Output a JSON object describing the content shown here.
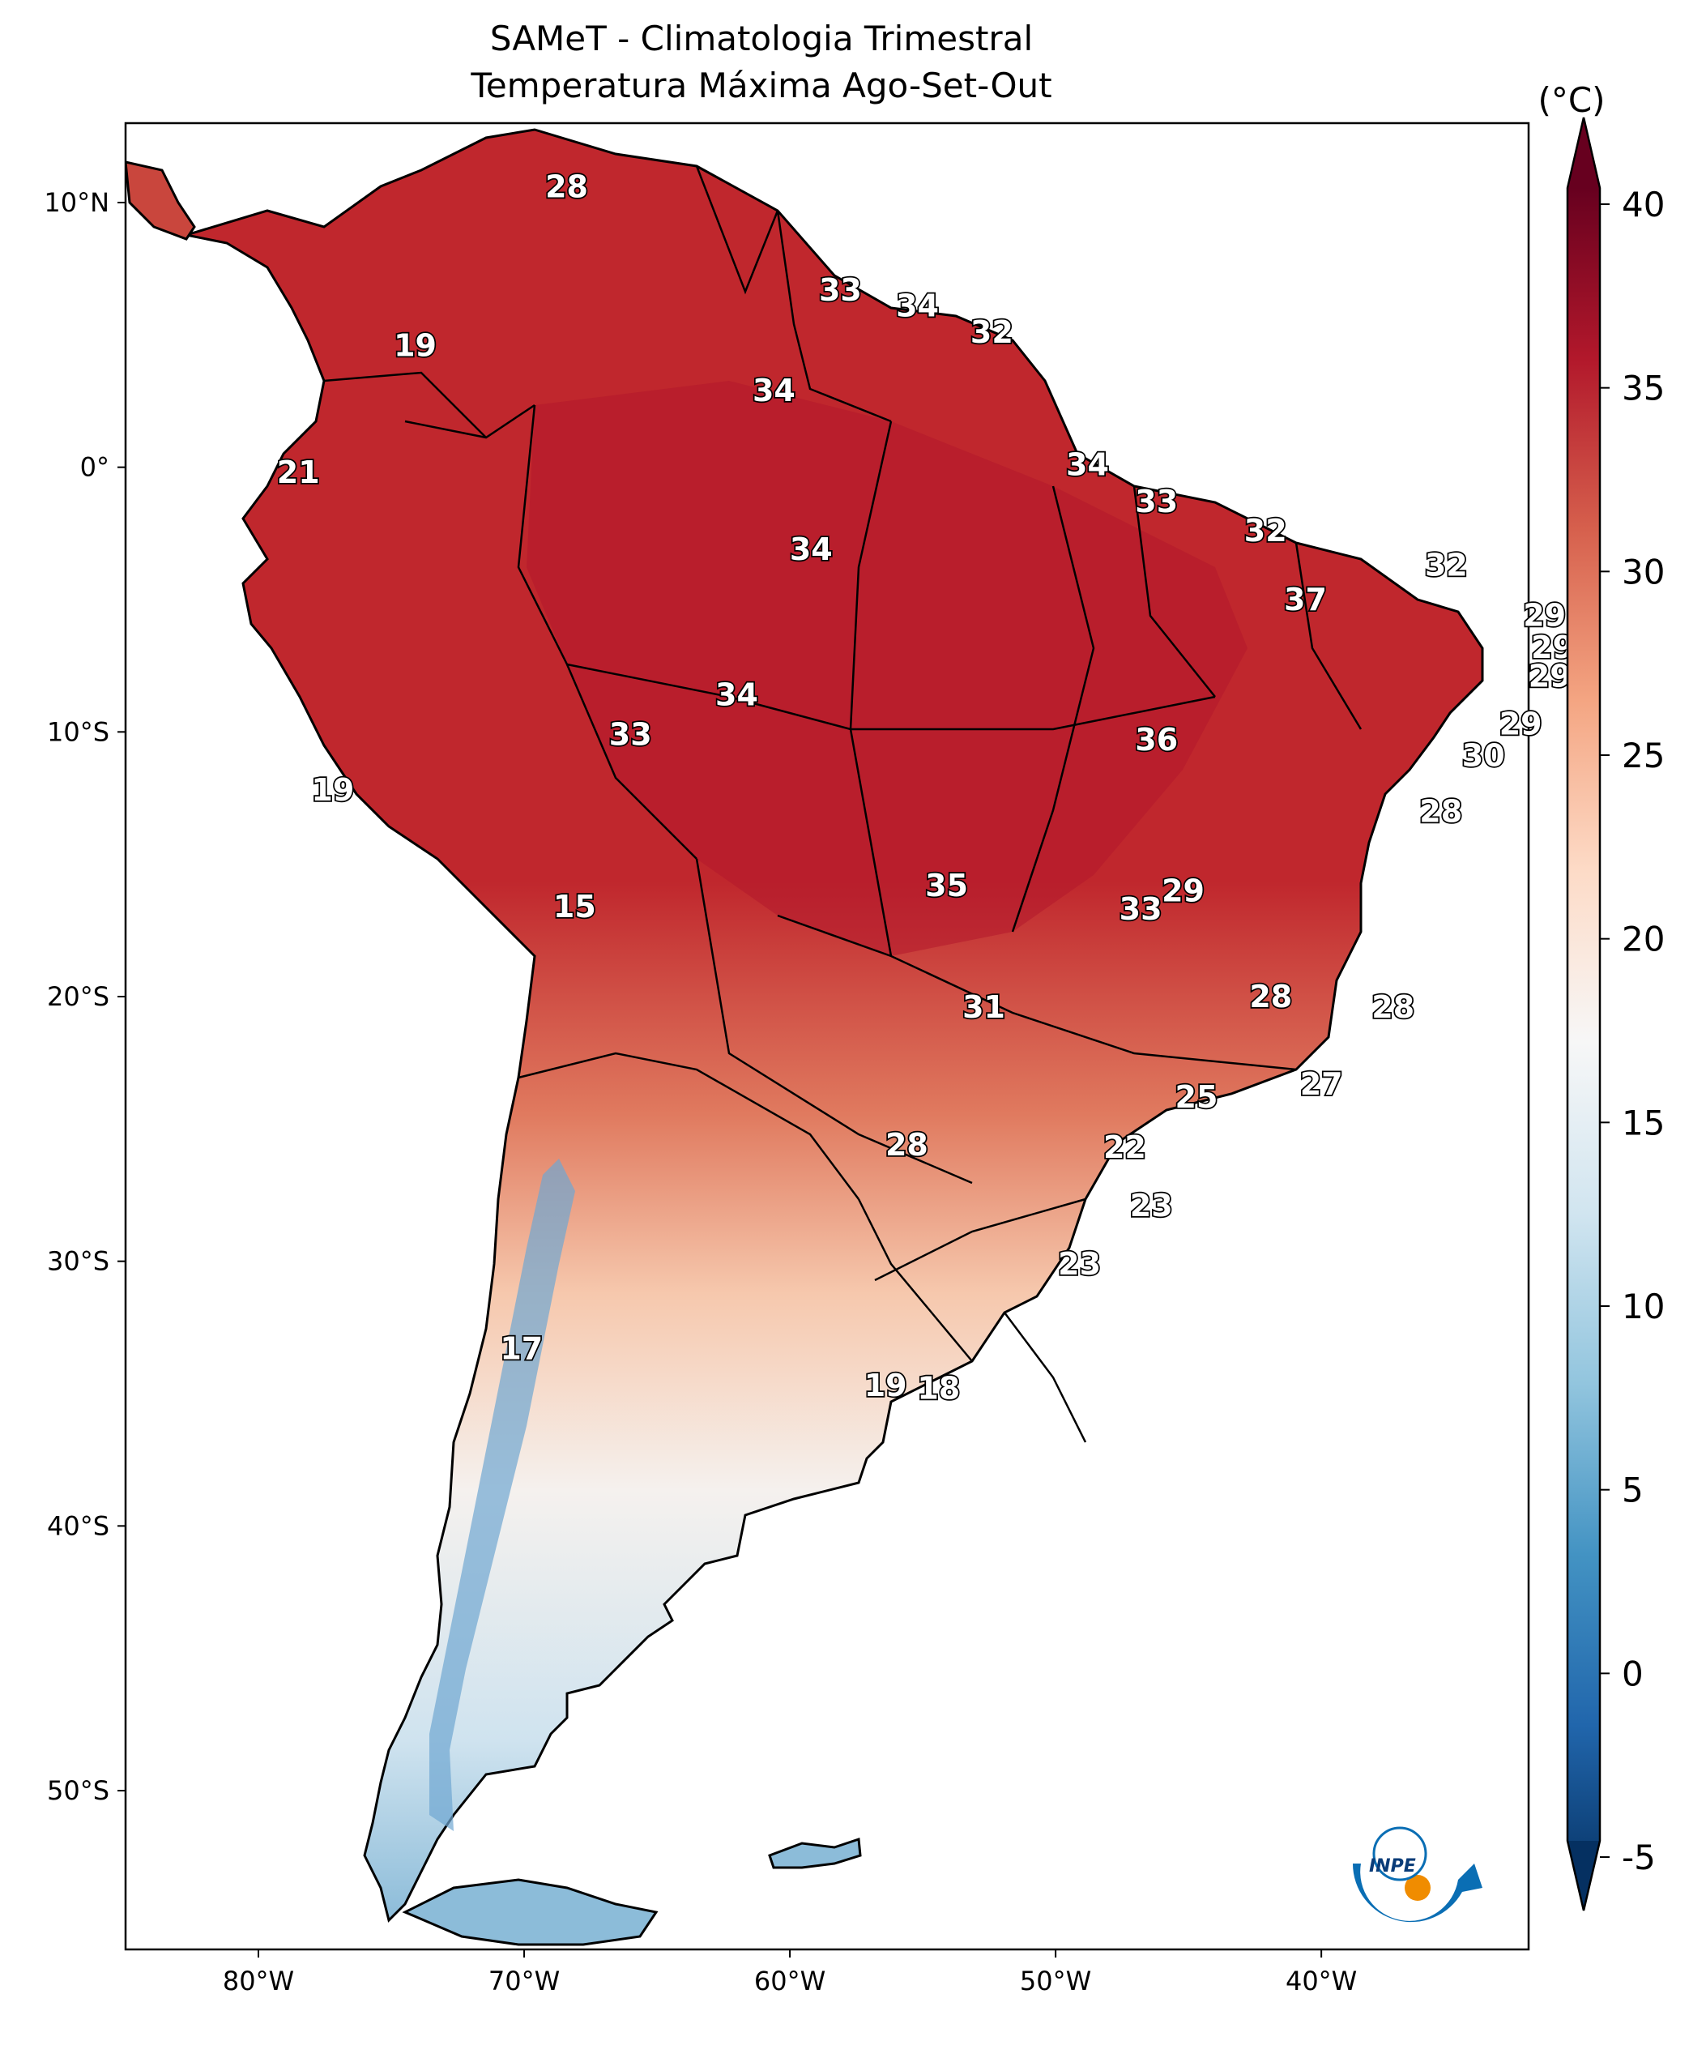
{
  "title": "SAMeT - Climatologia Trimestral",
  "subtitle": "Temperatura Máxima   Ago-Set-Out",
  "colorbar": {
    "unit": "(°C)",
    "ticks": [
      "40",
      "35",
      "30",
      "25",
      "20",
      "15",
      "10",
      "5",
      "0",
      "-5"
    ],
    "min": -5,
    "max": 40,
    "colormap": "RdBu_r",
    "colors": [
      "#053061",
      "#2166ac",
      "#4393c3",
      "#92c5de",
      "#d1e5f0",
      "#f7f7f7",
      "#fddbc7",
      "#f4a582",
      "#d6604d",
      "#b2182b",
      "#67001f"
    ]
  },
  "axes": {
    "lat_ticks": [
      "10°N",
      "0°",
      "10°S",
      "20°S",
      "30°S",
      "40°S",
      "50°S"
    ],
    "lon_ticks": [
      "80°W",
      "70°W",
      "60°W",
      "50°W",
      "40°W"
    ]
  },
  "logo": {
    "text": "INPE",
    "colors": [
      "#0a6eb4",
      "#f08c00"
    ]
  },
  "labels": [
    {
      "v": "28",
      "lon": -68.4,
      "lat": 10.6
    },
    {
      "v": "19",
      "lon": -74.1,
      "lat": 4.6
    },
    {
      "v": "33",
      "lon": -58.1,
      "lat": 6.7
    },
    {
      "v": "34",
      "lon": -55.2,
      "lat": 6.1
    },
    {
      "v": "32",
      "lon": -52.4,
      "lat": 5.1
    },
    {
      "v": "34",
      "lon": -60.6,
      "lat": 2.9
    },
    {
      "v": "21",
      "lon": -78.5,
      "lat": -0.2
    },
    {
      "v": "34",
      "lon": -48.8,
      "lat": 0.1
    },
    {
      "v": "33",
      "lon": -46.2,
      "lat": -1.3
    },
    {
      "v": "32",
      "lon": -42.1,
      "lat": -2.4
    },
    {
      "v": "34",
      "lon": -59.2,
      "lat": -3.1
    },
    {
      "v": "32",
      "lon": -35.3,
      "lat": -3.7
    },
    {
      "v": "37",
      "lon": -40.6,
      "lat": -5.0
    },
    {
      "v": "29",
      "lon": -31.6,
      "lat": -5.6
    },
    {
      "v": "29",
      "lon": -31.3,
      "lat": -6.8
    },
    {
      "v": "29",
      "lon": -31.4,
      "lat": -7.9
    },
    {
      "v": "34",
      "lon": -62.0,
      "lat": -8.6
    },
    {
      "v": "33",
      "lon": -66.0,
      "lat": -10.1
    },
    {
      "v": "36",
      "lon": -46.2,
      "lat": -10.3
    },
    {
      "v": "29",
      "lon": -32.5,
      "lat": -9.7
    },
    {
      "v": "30",
      "lon": -33.9,
      "lat": -10.9
    },
    {
      "v": "19",
      "lon": -77.2,
      "lat": -12.2
    },
    {
      "v": "28",
      "lon": -35.5,
      "lat": -13.0
    },
    {
      "v": "35",
      "lon": -54.1,
      "lat": -15.8
    },
    {
      "v": "29",
      "lon": -45.2,
      "lat": -16.0
    },
    {
      "v": "33",
      "lon": -46.8,
      "lat": -16.7
    },
    {
      "v": "15",
      "lon": -68.1,
      "lat": -16.6
    },
    {
      "v": "28",
      "lon": -41.9,
      "lat": -20.0
    },
    {
      "v": "28",
      "lon": -37.3,
      "lat": -20.4
    },
    {
      "v": "31",
      "lon": -52.7,
      "lat": -20.4
    },
    {
      "v": "27",
      "lon": -40.0,
      "lat": -23.3
    },
    {
      "v": "25",
      "lon": -44.7,
      "lat": -23.8
    },
    {
      "v": "22",
      "lon": -47.4,
      "lat": -25.7
    },
    {
      "v": "28",
      "lon": -55.6,
      "lat": -25.6
    },
    {
      "v": "23",
      "lon": -46.4,
      "lat": -27.9
    },
    {
      "v": "23",
      "lon": -49.1,
      "lat": -30.1
    },
    {
      "v": "17",
      "lon": -70.1,
      "lat": -33.3
    },
    {
      "v": "19",
      "lon": -56.4,
      "lat": -34.7
    },
    {
      "v": "18",
      "lon": -54.4,
      "lat": -34.8
    }
  ]
}
